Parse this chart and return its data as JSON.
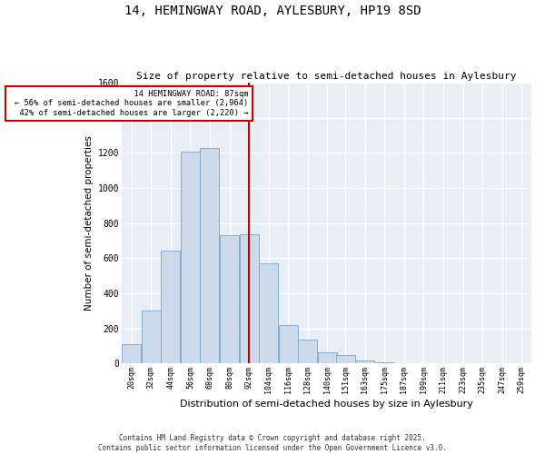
{
  "title1": "14, HEMINGWAY ROAD, AYLESBURY, HP19 8SD",
  "title2": "Size of property relative to semi-detached houses in Aylesbury",
  "xlabel": "Distribution of semi-detached houses by size in Aylesbury",
  "ylabel": "Number of semi-detached properties",
  "bar_labels": [
    "20sqm",
    "32sqm",
    "44sqm",
    "56sqm",
    "68sqm",
    "80sqm",
    "92sqm",
    "104sqm",
    "116sqm",
    "128sqm",
    "140sqm",
    "151sqm",
    "163sqm",
    "175sqm",
    "187sqm",
    "199sqm",
    "211sqm",
    "223sqm",
    "235sqm",
    "247sqm",
    "259sqm"
  ],
  "bar_values": [
    110,
    300,
    645,
    1205,
    1230,
    730,
    735,
    570,
    220,
    135,
    65,
    50,
    18,
    8,
    2,
    1,
    0,
    0,
    0,
    0,
    0
  ],
  "bar_color": "#cddaeb",
  "bar_edge_color": "#7aa3cc",
  "property_line_x": 92,
  "property_line_label": "14 HEMINGWAY ROAD: 87sqm",
  "pct_smaller": 56,
  "n_smaller": 2964,
  "pct_larger": 42,
  "n_larger": 2220,
  "ylim": [
    0,
    1600
  ],
  "yticks": [
    0,
    200,
    400,
    600,
    800,
    1000,
    1200,
    1400,
    1600
  ],
  "annotation_box_color": "#cc0000",
  "background_color": "#e8eef5",
  "footnote1": "Contains HM Land Registry data © Crown copyright and database right 2025.",
  "footnote2": "Contains public sector information licensed under the Open Government Licence v3.0."
}
